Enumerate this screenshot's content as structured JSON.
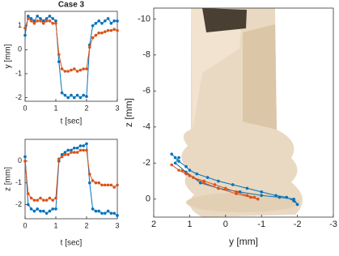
{
  "chart_data": [
    {
      "type": "line",
      "title": "Case 3",
      "xlabel": "t [sec]",
      "ylabel": "y [mm]",
      "x": [
        0,
        0.1,
        0.2,
        0.3,
        0.4,
        0.5,
        0.6,
        0.7,
        0.8,
        0.9,
        1.0,
        1.1,
        1.2,
        1.3,
        1.4,
        1.5,
        1.6,
        1.7,
        1.8,
        1.9,
        2.0,
        2.1,
        2.2,
        2.3,
        2.4,
        2.5,
        2.6,
        2.7,
        2.8,
        2.9,
        3.0
      ],
      "xlim": [
        0,
        3
      ],
      "xticks": [
        0,
        1,
        2,
        3
      ],
      "ylim": [
        -2.15,
        1.6
      ],
      "yticks": [
        -2,
        -1,
        0,
        1
      ],
      "series": [
        {
          "color": "#0072bd",
          "values": [
            0.6,
            1.4,
            1.3,
            1.2,
            1.4,
            1.3,
            1.2,
            1.3,
            1.4,
            1.3,
            1.2,
            -0.5,
            -1.8,
            -1.9,
            -2.0,
            -1.9,
            -2.0,
            -1.9,
            -2.0,
            -1.9,
            -1.95,
            0.2,
            1.0,
            1.1,
            1.2,
            1.1,
            1.2,
            1.3,
            1.1,
            1.2,
            1.2
          ]
        },
        {
          "color": "#d95319",
          "values": [
            0.9,
            1.3,
            1.2,
            1.1,
            1.2,
            1.2,
            1.1,
            1.2,
            1.2,
            1.1,
            1.1,
            -0.2,
            -0.8,
            -0.9,
            -0.9,
            -0.85,
            -0.8,
            -0.9,
            -0.85,
            -0.8,
            -0.8,
            0.1,
            0.5,
            0.6,
            0.7,
            0.7,
            0.75,
            0.8,
            0.8,
            0.85,
            0.8
          ]
        }
      ]
    },
    {
      "type": "line",
      "xlabel": "t [sec]",
      "ylabel": "z [mm]",
      "x": [
        0,
        0.1,
        0.2,
        0.3,
        0.4,
        0.5,
        0.6,
        0.7,
        0.8,
        0.9,
        1.0,
        1.1,
        1.2,
        1.3,
        1.4,
        1.5,
        1.6,
        1.7,
        1.8,
        1.9,
        2.0,
        2.1,
        2.2,
        2.3,
        2.4,
        2.5,
        2.6,
        2.7,
        2.8,
        2.9,
        3.0
      ],
      "xlim": [
        0,
        3
      ],
      "xticks": [
        0,
        1,
        2,
        3
      ],
      "ylim": [
        -2.65,
        1.0
      ],
      "yticks": [
        -2,
        -1,
        0
      ],
      "series": [
        {
          "color": "#0072bd",
          "values": [
            0.2,
            -2.0,
            -2.2,
            -2.3,
            -2.2,
            -2.3,
            -2.3,
            -2.4,
            -2.3,
            -2.2,
            -2.2,
            0.0,
            0.3,
            0.4,
            0.5,
            0.5,
            0.6,
            0.6,
            0.7,
            0.7,
            0.8,
            -1.0,
            -2.2,
            -2.3,
            -2.3,
            -2.4,
            -2.4,
            -2.3,
            -2.4,
            -2.4,
            -2.5
          ]
        },
        {
          "color": "#d95319",
          "values": [
            0.0,
            -1.5,
            -1.7,
            -1.8,
            -1.8,
            -1.7,
            -1.8,
            -1.8,
            -1.7,
            -1.8,
            -1.7,
            0.1,
            0.2,
            0.3,
            0.3,
            0.4,
            0.4,
            0.4,
            0.5,
            0.5,
            0.5,
            -0.6,
            -0.9,
            -1.0,
            -1.0,
            -1.1,
            -1.1,
            -1.1,
            -1.1,
            -1.2,
            -1.1
          ]
        }
      ]
    },
    {
      "type": "line",
      "xlabel": "y [mm]",
      "ylabel": "z [mm]",
      "xlim": [
        2,
        -3
      ],
      "xticks": [
        2,
        1,
        0,
        -1,
        -2,
        -3
      ],
      "ylim": [
        1,
        -10.6
      ],
      "yticks": [
        -10,
        -8,
        -6,
        -4,
        -2,
        0
      ],
      "series": [
        {
          "color": "#0072bd",
          "x": [
            1.5,
            1.4,
            1.3,
            1.1,
            1.0,
            0.8,
            0.5,
            0.2,
            -0.2,
            -0.6,
            -1.0,
            -1.4,
            -1.7,
            -1.9,
            -2.0,
            -1.9,
            -1.5,
            -1.0,
            -0.4,
            0.2,
            0.7,
            1.1,
            1.4,
            1.3
          ],
          "values": [
            -2.5,
            -2.3,
            -2.1,
            -1.8,
            -1.6,
            -1.4,
            -1.2,
            -1.0,
            -0.8,
            -0.6,
            -0.4,
            -0.2,
            -0.1,
            0.1,
            0.3,
            0.0,
            -0.1,
            -0.2,
            -0.4,
            -0.6,
            -0.9,
            -1.5,
            -2.0,
            -2.3
          ]
        },
        {
          "color": "#d95319",
          "x": [
            1.5,
            1.3,
            1.1,
            0.9,
            0.6,
            0.3,
            0.0,
            -0.3,
            -0.6,
            -0.8,
            -0.9,
            -0.7,
            -0.3,
            0.2,
            0.6,
            1.0,
            1.2
          ],
          "values": [
            -1.9,
            -1.6,
            -1.4,
            -1.2,
            -1.0,
            -0.8,
            -0.6,
            -0.4,
            -0.2,
            -0.1,
            0.0,
            -0.1,
            -0.3,
            -0.6,
            -0.9,
            -1.3,
            -1.6
          ]
        }
      ]
    }
  ]
}
